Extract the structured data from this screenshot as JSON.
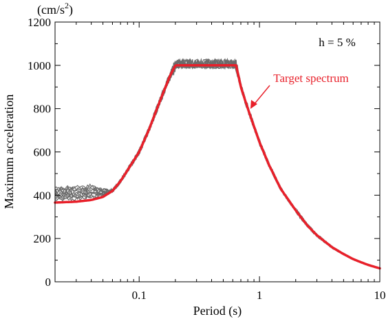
{
  "chart_data": {
    "type": "line",
    "xscale": "log",
    "xlim": [
      0.02,
      10
    ],
    "ylim": [
      0,
      1200
    ],
    "xlabel": "Period (s)",
    "ylabel": "Maximum acceleration",
    "y_unit": "(cm/s²)",
    "y_unit_base": "(cm/s",
    "y_unit_sup": "2",
    "y_unit_close": ")",
    "grid": false,
    "x_ticks": [
      0.1,
      1,
      10
    ],
    "x_tick_labels": [
      "0.1",
      "1",
      "10"
    ],
    "y_ticks": [
      0,
      200,
      400,
      600,
      800,
      1000,
      1200
    ],
    "y_tick_labels": [
      "0",
      "200",
      "400",
      "600",
      "800",
      "1000",
      "1200"
    ],
    "annotations": {
      "damping": "h = 5 %",
      "target_label": "Target spectrum"
    },
    "target_series": {
      "name": "Target spectrum",
      "color": "#e8202a",
      "points": [
        [
          0.02,
          366
        ],
        [
          0.03,
          370
        ],
        [
          0.04,
          378
        ],
        [
          0.05,
          392
        ],
        [
          0.06,
          420
        ],
        [
          0.07,
          465
        ],
        [
          0.08,
          515
        ],
        [
          0.1,
          600
        ],
        [
          0.12,
          700
        ],
        [
          0.15,
          840
        ],
        [
          0.18,
          950
        ],
        [
          0.2,
          1000
        ],
        [
          0.3,
          1000
        ],
        [
          0.4,
          1000
        ],
        [
          0.5,
          1000
        ],
        [
          0.64,
          1000
        ],
        [
          0.7,
          900
        ],
        [
          0.8,
          800
        ],
        [
          1.0,
          645
        ],
        [
          1.2,
          540
        ],
        [
          1.5,
          430
        ],
        [
          2.0,
          330
        ],
        [
          2.5,
          260
        ],
        [
          3.0,
          215
        ],
        [
          4.0,
          160
        ],
        [
          5.0,
          128
        ],
        [
          6.0,
          105
        ],
        [
          7.0,
          90
        ],
        [
          8.0,
          78
        ],
        [
          10.0,
          62
        ]
      ]
    },
    "simulated_series": {
      "color": "#6b6b6b",
      "count": 10,
      "low_period_levels": [
        378,
        384,
        390,
        396,
        402,
        408,
        414,
        420,
        426,
        432
      ]
    },
    "colors": {
      "target": "#e8202a",
      "simulated": "#6b6b6b",
      "axis": "#000000",
      "annotation": "#e8202a"
    }
  }
}
